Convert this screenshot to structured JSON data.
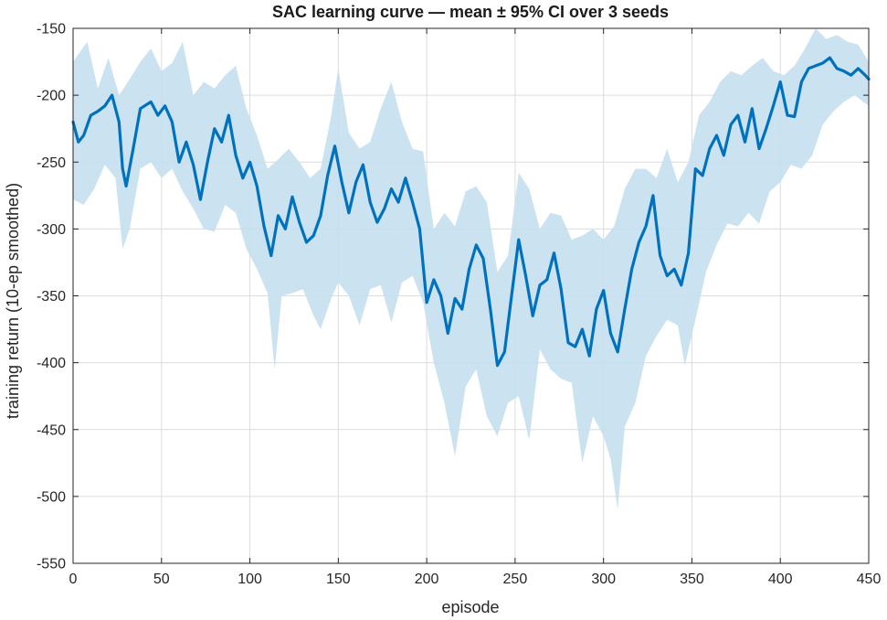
{
  "chart_data": {
    "type": "line",
    "title": "SAC learning curve — mean ± 95% CI over 3 seeds",
    "xlabel": "episode",
    "ylabel": "training return (10-ep smoothed)",
    "xlim": [
      0,
      450
    ],
    "ylim": [
      -550,
      -150
    ],
    "xticks": [
      0,
      50,
      100,
      150,
      200,
      250,
      300,
      350,
      400,
      450
    ],
    "yticks": [
      -550,
      -500,
      -450,
      -400,
      -350,
      -300,
      -250,
      -200,
      -150
    ],
    "grid": true,
    "colors": {
      "line": "#0072BD",
      "band": "#C5E0F0"
    },
    "series": [
      {
        "kind": "mean",
        "x": [
          0,
          3,
          6,
          10,
          14,
          18,
          22,
          26,
          28,
          30,
          34,
          38,
          44,
          48,
          52,
          56,
          60,
          64,
          68,
          72,
          76,
          80,
          84,
          88,
          92,
          96,
          100,
          104,
          108,
          112,
          116,
          120,
          124,
          128,
          132,
          136,
          140,
          144,
          148,
          152,
          156,
          160,
          164,
          168,
          172,
          176,
          180,
          184,
          188,
          192,
          196,
          200,
          204,
          208,
          212,
          216,
          220,
          224,
          228,
          232,
          236,
          240,
          244,
          248,
          252,
          256,
          260,
          264,
          268,
          272,
          276,
          280,
          284,
          288,
          292,
          296,
          300,
          304,
          308,
          312,
          316,
          320,
          324,
          328,
          332,
          336,
          340,
          344,
          348,
          352,
          356,
          360,
          364,
          368,
          372,
          376,
          380,
          384,
          388,
          392,
          396,
          400,
          404,
          408,
          412,
          416,
          420,
          424,
          428,
          432,
          436,
          440,
          444,
          448,
          450
        ],
        "y": [
          -220,
          -235,
          -230,
          -215,
          -212,
          -208,
          -200,
          -220,
          -255,
          -268,
          -240,
          -210,
          -205,
          -215,
          -208,
          -220,
          -250,
          -235,
          -252,
          -278,
          -250,
          -225,
          -235,
          -215,
          -245,
          -262,
          -250,
          -268,
          -298,
          -320,
          -290,
          -300,
          -276,
          -295,
          -310,
          -305,
          -290,
          -260,
          -238,
          -265,
          -288,
          -265,
          -252,
          -280,
          -295,
          -285,
          -270,
          -280,
          -262,
          -280,
          -300,
          -355,
          -338,
          -350,
          -378,
          -352,
          -360,
          -330,
          -312,
          -322,
          -360,
          -402,
          -392,
          -350,
          -308,
          -335,
          -365,
          -342,
          -338,
          -318,
          -345,
          -385,
          -388,
          -375,
          -395,
          -360,
          -346,
          -378,
          -392,
          -360,
          -330,
          -310,
          -298,
          -275,
          -320,
          -335,
          -330,
          -342,
          -318,
          -255,
          -260,
          -240,
          -230,
          -245,
          -222,
          -215,
          -235,
          -210,
          -240,
          -225,
          -208,
          -190,
          -215,
          -216,
          -190,
          -180,
          -178,
          -176,
          -172,
          -180,
          -182,
          -185,
          -180,
          -185,
          -188
        ]
      },
      {
        "kind": "ci_upper",
        "x": [
          0,
          8,
          14,
          20,
          26,
          32,
          38,
          44,
          50,
          56,
          62,
          68,
          74,
          80,
          86,
          92,
          98,
          104,
          110,
          116,
          122,
          128,
          134,
          140,
          146,
          150,
          156,
          162,
          168,
          174,
          180,
          186,
          192,
          198,
          204,
          210,
          216,
          222,
          228,
          234,
          240,
          246,
          252,
          258,
          264,
          270,
          276,
          282,
          288,
          294,
          300,
          306,
          312,
          318,
          324,
          330,
          336,
          342,
          348,
          354,
          360,
          366,
          372,
          378,
          384,
          390,
          396,
          402,
          408,
          414,
          420,
          426,
          432,
          438,
          444,
          450
        ],
        "y": [
          -175,
          -160,
          -195,
          -172,
          -200,
          -188,
          -175,
          -165,
          -182,
          -176,
          -160,
          -200,
          -190,
          -195,
          -185,
          -178,
          -210,
          -230,
          -255,
          -248,
          -240,
          -250,
          -262,
          -255,
          -215,
          -180,
          -228,
          -240,
          -235,
          -210,
          -190,
          -220,
          -240,
          -242,
          -300,
          -288,
          -298,
          -272,
          -268,
          -280,
          -332,
          -320,
          -258,
          -270,
          -300,
          -288,
          -290,
          -308,
          -305,
          -300,
          -308,
          -298,
          -270,
          -255,
          -255,
          -262,
          -240,
          -265,
          -250,
          -215,
          -205,
          -190,
          -182,
          -185,
          -178,
          -172,
          -182,
          -185,
          -178,
          -165,
          -150,
          -158,
          -155,
          -160,
          -162,
          -175
        ]
      },
      {
        "kind": "ci_lower",
        "x": [
          0,
          6,
          12,
          18,
          24,
          28,
          32,
          38,
          44,
          50,
          56,
          62,
          68,
          74,
          80,
          86,
          92,
          98,
          104,
          110,
          114,
          118,
          124,
          130,
          136,
          140,
          146,
          150,
          156,
          162,
          168,
          174,
          180,
          186,
          192,
          198,
          204,
          210,
          216,
          222,
          228,
          234,
          240,
          246,
          252,
          258,
          264,
          270,
          276,
          282,
          288,
          294,
          300,
          304,
          308,
          312,
          318,
          324,
          330,
          336,
          342,
          346,
          352,
          358,
          364,
          370,
          376,
          382,
          388,
          394,
          400,
          406,
          412,
          418,
          424,
          430,
          436,
          442,
          450
        ],
        "y": [
          -278,
          -282,
          -270,
          -252,
          -262,
          -315,
          -300,
          -255,
          -250,
          -262,
          -255,
          -272,
          -285,
          -300,
          -302,
          -282,
          -288,
          -315,
          -330,
          -348,
          -405,
          -350,
          -348,
          -345,
          -365,
          -375,
          -352,
          -340,
          -350,
          -372,
          -345,
          -342,
          -370,
          -340,
          -335,
          -355,
          -400,
          -430,
          -470,
          -418,
          -405,
          -440,
          -455,
          -430,
          -425,
          -458,
          -390,
          -405,
          -412,
          -415,
          -475,
          -440,
          -455,
          -472,
          -510,
          -448,
          -430,
          -395,
          -380,
          -368,
          -372,
          -402,
          -368,
          -332,
          -312,
          -296,
          -298,
          -288,
          -296,
          -272,
          -265,
          -252,
          -255,
          -245,
          -222,
          -212,
          -205,
          -200,
          -208
        ]
      }
    ]
  }
}
